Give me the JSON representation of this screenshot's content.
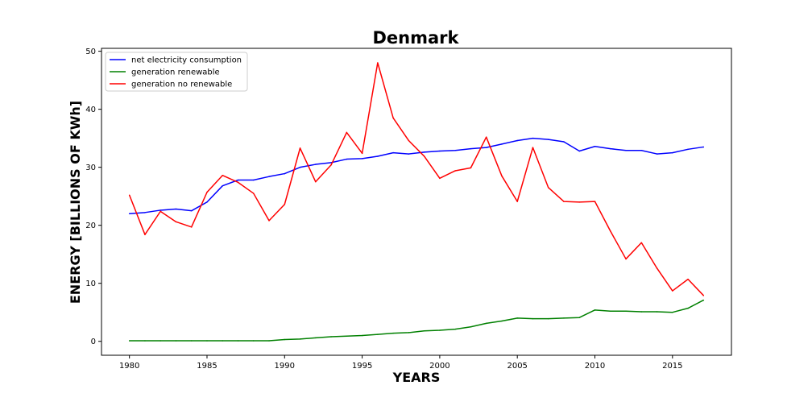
{
  "chart_data": {
    "type": "line",
    "title": "Denmark",
    "xlabel": "YEARS",
    "ylabel": "ENERGY [BILLIONS OF KWh]",
    "xlim": [
      1978.2,
      2018.8
    ],
    "ylim": [
      -2.4,
      50.5
    ],
    "xticks": [
      1980,
      1985,
      1990,
      1995,
      2000,
      2005,
      2010,
      2015
    ],
    "yticks": [
      0,
      10,
      20,
      30,
      40,
      50
    ],
    "grid": false,
    "legend_position": "top-left",
    "x": [
      1980,
      1981,
      1982,
      1983,
      1984,
      1985,
      1986,
      1987,
      1988,
      1989,
      1990,
      1991,
      1992,
      1993,
      1994,
      1995,
      1996,
      1997,
      1998,
      1999,
      2000,
      2001,
      2002,
      2003,
      2004,
      2005,
      2006,
      2007,
      2008,
      2009,
      2010,
      2011,
      2012,
      2013,
      2014,
      2015,
      2016,
      2017
    ],
    "series": [
      {
        "name": "net electricity consumption",
        "color": "#0000ff",
        "values": [
          22.0,
          22.2,
          22.6,
          22.8,
          22.5,
          24.0,
          26.8,
          27.8,
          27.8,
          28.4,
          28.9,
          30.0,
          30.5,
          30.8,
          31.4,
          31.5,
          31.9,
          32.5,
          32.3,
          32.6,
          32.8,
          32.9,
          33.2,
          33.4,
          34.0,
          34.6,
          35.0,
          34.8,
          34.4,
          32.8,
          33.6,
          33.2,
          32.9,
          32.9,
          32.3,
          32.5,
          33.1,
          33.5
        ]
      },
      {
        "name": "generation renewable",
        "color": "#008000",
        "values": [
          0.1,
          0.1,
          0.1,
          0.1,
          0.1,
          0.1,
          0.1,
          0.1,
          0.1,
          0.1,
          0.3,
          0.4,
          0.6,
          0.8,
          0.9,
          1.0,
          1.2,
          1.4,
          1.5,
          1.8,
          1.9,
          2.1,
          2.5,
          3.1,
          3.5,
          4.0,
          3.9,
          3.9,
          4.0,
          4.1,
          5.4,
          5.2,
          5.2,
          5.1,
          5.1,
          5.0,
          5.7,
          7.1
        ]
      },
      {
        "name": "generation no renewable",
        "color": "#ff0000",
        "values": [
          25.2,
          18.4,
          22.4,
          20.6,
          19.7,
          25.7,
          28.6,
          27.4,
          25.5,
          20.8,
          23.6,
          33.3,
          27.5,
          30.4,
          36.0,
          32.4,
          48.0,
          38.5,
          34.6,
          31.9,
          28.1,
          29.4,
          29.9,
          35.2,
          28.5,
          24.1,
          33.4,
          26.5,
          24.1,
          24.0,
          24.1,
          19.0,
          14.2,
          17.0,
          12.6,
          8.7,
          10.7,
          7.9
        ]
      }
    ]
  }
}
